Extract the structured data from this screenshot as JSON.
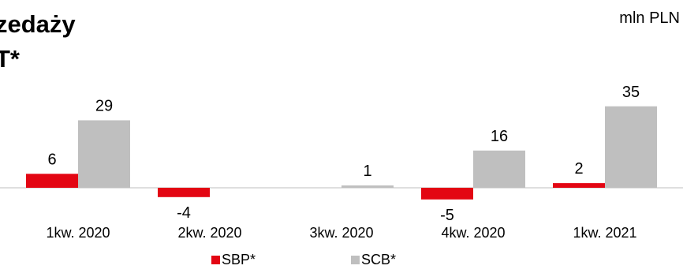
{
  "header": {
    "title_lines": [
      "zedaży",
      "T*"
    ],
    "unit": "mln PLN"
  },
  "chart_data": {
    "type": "bar",
    "categories": [
      "1kw. 2020",
      "2kw. 2020",
      "3kw. 2020",
      "4kw. 2020",
      "1kw. 2021"
    ],
    "series": [
      {
        "name": "SBP*",
        "color": "#e30613",
        "values": [
          6,
          -4,
          null,
          -5,
          2
        ],
        "labels": [
          "6",
          "-4",
          "",
          "-5",
          "2"
        ]
      },
      {
        "name": "SCB*",
        "color": "#bfbfbf",
        "values": [
          29,
          null,
          1,
          16,
          35
        ],
        "labels": [
          "29",
          "",
          "1",
          "16",
          "35"
        ]
      }
    ],
    "legend_position": "bottom",
    "axis_line_color": "#bfbfbf",
    "grid": false
  }
}
